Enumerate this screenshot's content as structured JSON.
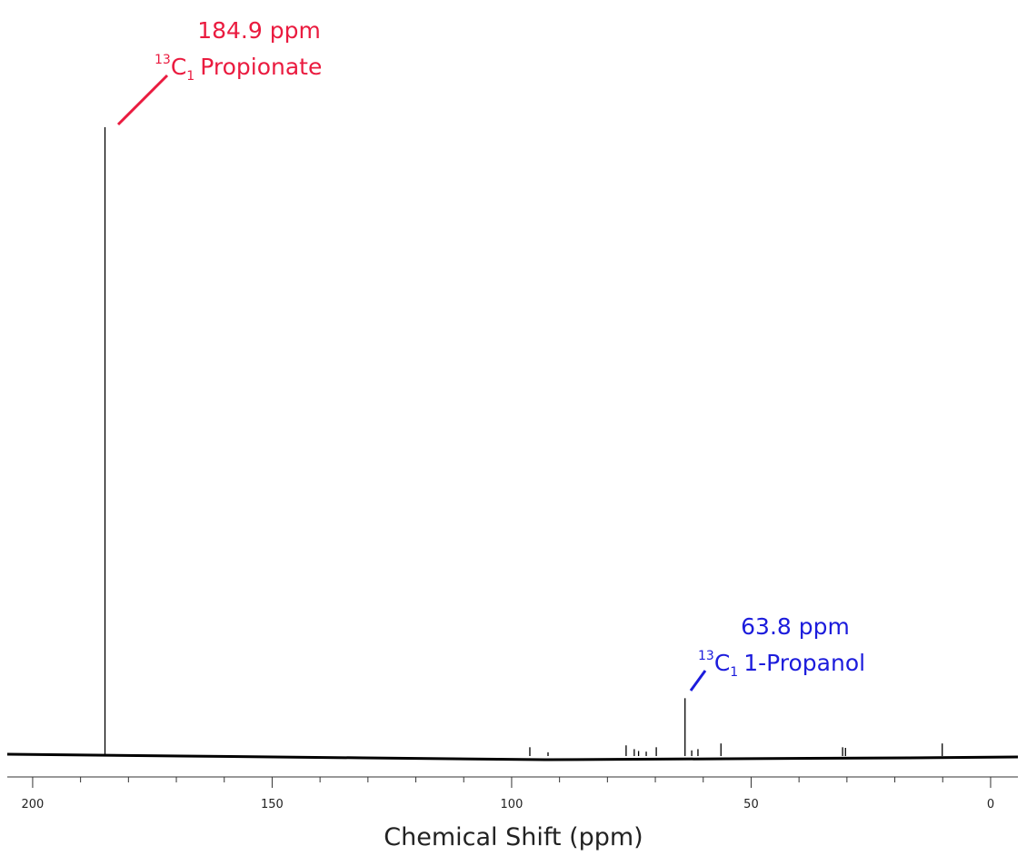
{
  "chart_data": {
    "type": "stem",
    "x_label": "Chemical Shift (ppm)",
    "x": [
      184.9,
      96.2,
      92.4,
      76.1,
      74.4,
      73.5,
      71.9,
      69.8,
      63.8,
      62.4,
      61.1,
      56.3,
      30.9,
      30.3,
      10.1
    ],
    "values": [
      100,
      1.4,
      0.6,
      1.7,
      1.1,
      0.8,
      0.7,
      1.4,
      9.2,
      0.9,
      1.1,
      2.0,
      1.4,
      1.3,
      2.0
    ],
    "color": "#000000",
    "xlim": [
      205.3,
      -5.7
    ],
    "ylim": [
      0,
      100
    ],
    "xticks": [
      200,
      150,
      100,
      50,
      0
    ],
    "xticks_minor": [
      190,
      180,
      170,
      160,
      140,
      130,
      120,
      110,
      90,
      80,
      70,
      60,
      40,
      30,
      20,
      10
    ],
    "annotations": [
      {
        "ppm": "184.9 ppm",
        "isotope": "13",
        "element": "C",
        "position": "1",
        "compound": "Propionate",
        "color": "#ea1b3f"
      },
      {
        "ppm": "63.8 ppm",
        "isotope": "13",
        "element": "C",
        "position": "1",
        "compound": "1-Propanol",
        "color": "#1c1cdc"
      }
    ]
  }
}
